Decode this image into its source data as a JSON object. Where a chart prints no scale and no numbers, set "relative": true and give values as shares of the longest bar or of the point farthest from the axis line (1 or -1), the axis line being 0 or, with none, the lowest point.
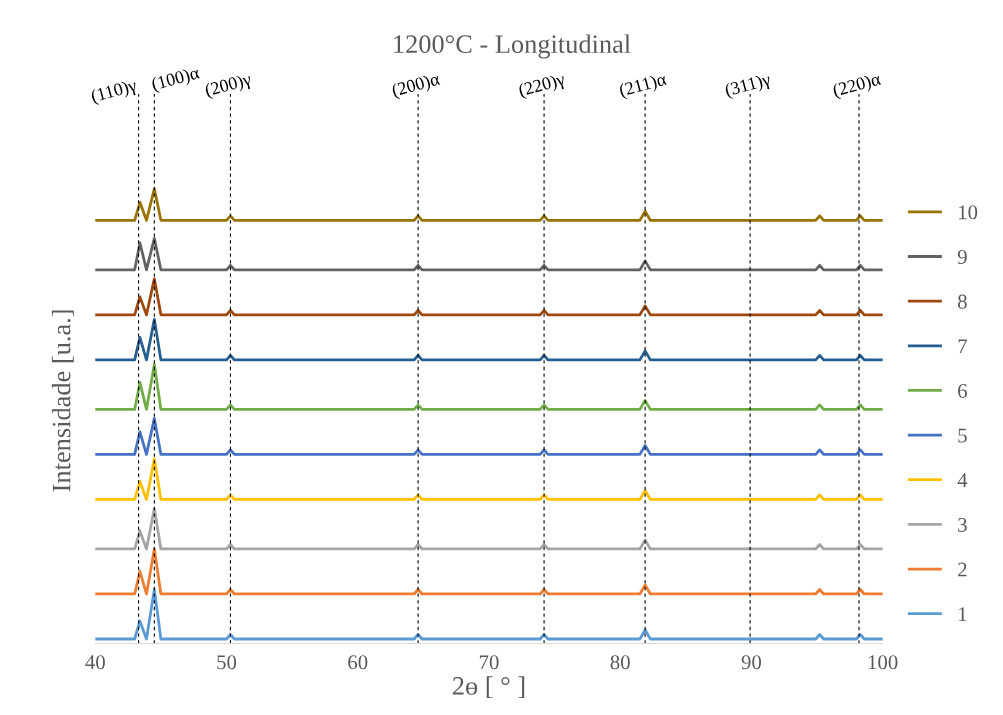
{
  "chart_data": {
    "type": "line",
    "title": "1200°C - Longitudinal",
    "xlabel": "2ɵ [ ° ]",
    "ylabel": "Intensidade [u.a.]",
    "relative": true,
    "x": [
      40,
      43.0,
      43.4,
      43.9,
      44.5,
      45.0,
      50.0,
      50.3,
      50.6,
      64.3,
      64.6,
      64.9,
      73.9,
      74.2,
      74.5,
      81.5,
      81.9,
      82.3,
      94.9,
      95.2,
      95.5,
      98.0,
      98.3,
      98.6,
      100
    ],
    "xlim": [
      40,
      100
    ],
    "xticks": [
      40,
      50,
      60,
      70,
      80,
      90,
      100
    ],
    "grid": false,
    "legend": "right",
    "line_style": "solid",
    "marker": "none",
    "series": [
      {
        "name": "1",
        "color": "#5b9bd5",
        "values": [
          0,
          0,
          0.04,
          0,
          0.11,
          0,
          0,
          0.01,
          0,
          0,
          0.01,
          0,
          0,
          0.01,
          0,
          0,
          0.02,
          0,
          0,
          0.01,
          0,
          0,
          0.01,
          0,
          0
        ]
      },
      {
        "name": "2",
        "color": "#ed7d31",
        "values": [
          0.1,
          0.1,
          0.15,
          0.1,
          0.2,
          0.1,
          0.1,
          0.11,
          0.1,
          0.1,
          0.11,
          0.1,
          0.1,
          0.11,
          0.1,
          0.1,
          0.12,
          0.1,
          0.1,
          0.11,
          0.1,
          0.1,
          0.11,
          0.1,
          0.1
        ]
      },
      {
        "name": "3",
        "color": "#a5a5a5",
        "values": [
          0.2,
          0.2,
          0.24,
          0.2,
          0.29,
          0.2,
          0.2,
          0.21,
          0.2,
          0.2,
          0.21,
          0.2,
          0.2,
          0.21,
          0.2,
          0.2,
          0.22,
          0.2,
          0.2,
          0.21,
          0.2,
          0.2,
          0.21,
          0.2,
          0.2
        ]
      },
      {
        "name": "4",
        "color": "#ffc000",
        "values": [
          0.31,
          0.31,
          0.35,
          0.31,
          0.4,
          0.31,
          0.31,
          0.32,
          0.31,
          0.31,
          0.32,
          0.31,
          0.31,
          0.32,
          0.31,
          0.31,
          0.33,
          0.31,
          0.31,
          0.32,
          0.31,
          0.31,
          0.32,
          0.31,
          0.31
        ]
      },
      {
        "name": "5",
        "color": "#4472c4",
        "values": [
          0.41,
          0.41,
          0.46,
          0.41,
          0.49,
          0.41,
          0.41,
          0.42,
          0.41,
          0.41,
          0.42,
          0.41,
          0.41,
          0.42,
          0.41,
          0.41,
          0.43,
          0.41,
          0.41,
          0.42,
          0.41,
          0.41,
          0.42,
          0.41,
          0.41
        ]
      },
      {
        "name": "6",
        "color": "#70ad47",
        "values": [
          0.51,
          0.51,
          0.57,
          0.51,
          0.61,
          0.51,
          0.51,
          0.52,
          0.51,
          0.51,
          0.52,
          0.51,
          0.51,
          0.52,
          0.51,
          0.51,
          0.53,
          0.51,
          0.51,
          0.52,
          0.51,
          0.51,
          0.52,
          0.51,
          0.51
        ]
      },
      {
        "name": "7",
        "color": "#255e91",
        "values": [
          0.62,
          0.62,
          0.67,
          0.62,
          0.71,
          0.62,
          0.62,
          0.63,
          0.62,
          0.62,
          0.63,
          0.62,
          0.62,
          0.63,
          0.62,
          0.62,
          0.64,
          0.62,
          0.62,
          0.63,
          0.62,
          0.62,
          0.63,
          0.62,
          0.62
        ]
      },
      {
        "name": "8",
        "color": "#9e480e",
        "values": [
          0.72,
          0.72,
          0.76,
          0.72,
          0.8,
          0.72,
          0.72,
          0.73,
          0.72,
          0.72,
          0.73,
          0.72,
          0.72,
          0.73,
          0.72,
          0.72,
          0.74,
          0.72,
          0.72,
          0.73,
          0.72,
          0.72,
          0.73,
          0.72,
          0.72
        ]
      },
      {
        "name": "9",
        "color": "#636363",
        "values": [
          0.82,
          0.82,
          0.88,
          0.82,
          0.89,
          0.82,
          0.82,
          0.83,
          0.82,
          0.82,
          0.83,
          0.82,
          0.82,
          0.83,
          0.82,
          0.82,
          0.84,
          0.82,
          0.82,
          0.83,
          0.82,
          0.82,
          0.83,
          0.82,
          0.82
        ]
      },
      {
        "name": "10",
        "color": "#997300",
        "values": [
          0.93,
          0.93,
          0.97,
          0.93,
          1.0,
          0.93,
          0.93,
          0.94,
          0.93,
          0.93,
          0.94,
          0.93,
          0.93,
          0.94,
          0.93,
          0.93,
          0.95,
          0.93,
          0.93,
          0.94,
          0.93,
          0.93,
          0.94,
          0.93,
          0.93
        ]
      }
    ],
    "ref_lines": [
      {
        "axis": "x",
        "value": 43.3,
        "label": "(110)γ",
        "color": "#000000",
        "line_style": "dashed"
      },
      {
        "axis": "x",
        "value": 44.5,
        "label": "(100)α",
        "color": "#000000",
        "line_style": "dashed"
      },
      {
        "axis": "x",
        "value": 50.3,
        "label": "(200)γ",
        "color": "#000000",
        "line_style": "dashed"
      },
      {
        "axis": "x",
        "value": 64.6,
        "label": "(200)α",
        "color": "#000000",
        "line_style": "dashed"
      },
      {
        "axis": "x",
        "value": 74.2,
        "label": "(220)γ",
        "color": "#000000",
        "line_style": "dashed"
      },
      {
        "axis": "x",
        "value": 81.9,
        "label": "(211)α",
        "color": "#000000",
        "line_style": "dashed"
      },
      {
        "axis": "x",
        "value": 89.9,
        "label": "(311)γ",
        "color": "#000000",
        "line_style": "dashed"
      },
      {
        "axis": "x",
        "value": 98.2,
        "label": "(220)α",
        "color": "#000000",
        "line_style": "dashed"
      }
    ]
  }
}
